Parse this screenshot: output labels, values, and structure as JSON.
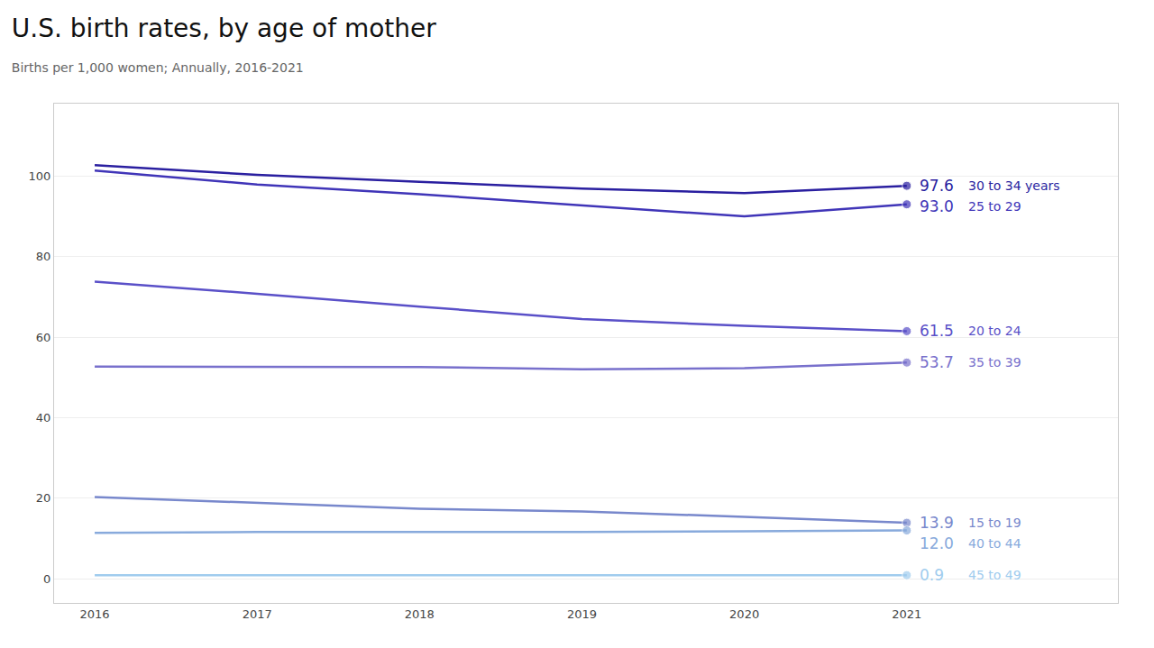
{
  "chart_data": {
    "type": "line",
    "title": "U.S. birth rates, by age of mother",
    "subtitle": "Births per 1,000 women; Annually, 2016-2021",
    "x": [
      2016,
      2017,
      2018,
      2019,
      2020,
      2021
    ],
    "xlim": [
      2015.75,
      2022.3
    ],
    "xticks": [
      2016,
      2017,
      2018,
      2019,
      2020,
      2021
    ],
    "ylim": [
      -6,
      118
    ],
    "yticks": [
      0,
      20,
      40,
      60,
      80,
      100
    ],
    "grid": "y",
    "data_labels": true,
    "series": [
      {
        "name": "30 to 34 years",
        "color": "#2a1fa0",
        "marker": "circle",
        "values": [
          102.7,
          100.3,
          98.6,
          96.9,
          95.8,
          97.6
        ],
        "value_labels": [
          null,
          null,
          null,
          null,
          null,
          "97.6"
        ]
      },
      {
        "name": "25 to 29",
        "color": "#4035b8",
        "marker": "circle",
        "values": [
          101.4,
          97.9,
          95.5,
          92.8,
          90.0,
          93.0
        ],
        "value_labels": [
          null,
          null,
          null,
          null,
          null,
          "93.0"
        ]
      },
      {
        "name": "20 to 24",
        "color": "#5a50c8",
        "marker": "circle",
        "values": [
          73.8,
          70.8,
          67.6,
          64.5,
          62.8,
          61.5
        ],
        "value_labels": [
          null,
          null,
          null,
          null,
          null,
          "61.5"
        ]
      },
      {
        "name": "35 to 39",
        "color": "#7870cc",
        "marker": "circle",
        "values": [
          52.7,
          52.6,
          52.6,
          52.0,
          52.3,
          53.7
        ],
        "value_labels": [
          null,
          null,
          null,
          null,
          null,
          "53.7"
        ]
      },
      {
        "name": "15 to 19",
        "color": "#7888cc",
        "marker": "circle",
        "values": [
          20.3,
          18.8,
          17.4,
          16.7,
          15.4,
          13.9
        ],
        "value_labels": [
          null,
          null,
          null,
          null,
          null,
          "13.9"
        ]
      },
      {
        "name": "40 to 44",
        "color": "#88aadc",
        "marker": "circle",
        "values": [
          11.4,
          11.6,
          11.6,
          11.6,
          11.8,
          12.0
        ],
        "value_labels": [
          null,
          null,
          null,
          null,
          null,
          "12.0"
        ]
      },
      {
        "name": "45 to 49",
        "color": "#a0ccee",
        "marker": "circle",
        "values": [
          0.9,
          0.9,
          0.9,
          0.9,
          0.9,
          0.9
        ],
        "value_labels": [
          null,
          null,
          null,
          null,
          null,
          "0.9"
        ]
      }
    ]
  }
}
